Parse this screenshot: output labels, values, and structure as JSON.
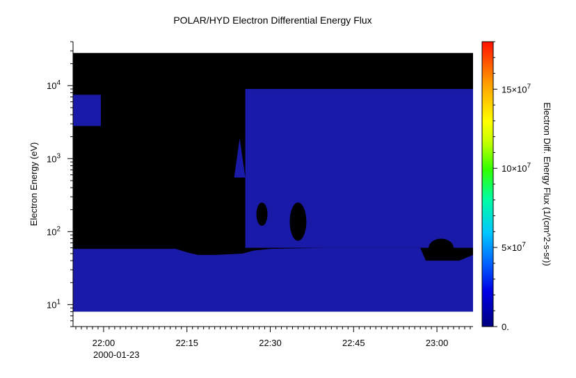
{
  "chart_data": {
    "type": "heatmap",
    "title": "POLAR/HYD  Electron Differential Energy Flux",
    "ylabel": "Electron Energy (eV)",
    "xlabel": "",
    "x_date_label": "2000-01-23",
    "x_ticks": [
      "22:00",
      "22:15",
      "22:30",
      "22:45",
      "23:00"
    ],
    "x_tick_minutes": [
      0,
      15,
      30,
      45,
      60
    ],
    "xlim_minutes": [
      -5.5,
      66.5
    ],
    "y_scale": "log",
    "ylim": [
      5,
      40000
    ],
    "y_ticks": [
      {
        "value": 10,
        "base": "10",
        "exp": "1"
      },
      {
        "value": 100,
        "base": "10",
        "exp": "2"
      },
      {
        "value": 1000,
        "base": "10",
        "exp": "3"
      },
      {
        "value": 10000,
        "base": "10",
        "exp": "4"
      }
    ],
    "data_energy_range_ev": [
      8,
      28000
    ],
    "colorbar": {
      "label": "Electron Diff. Energy Flux (1/(cm^2-s-sr))",
      "range": [
        0,
        180000000
      ],
      "ticks": [
        {
          "value": 0,
          "label": "0."
        },
        {
          "value": 50000000,
          "label": "5×10",
          "exp": "7"
        },
        {
          "value": 100000000,
          "label": "10×10",
          "exp": "7"
        },
        {
          "value": 150000000,
          "label": "15×10",
          "exp": "7"
        }
      ],
      "colormap": "rainbow (dark blue → red)"
    },
    "colors": {
      "no_flux": "#000000",
      "low_flux": "#1a1aa8",
      "fill_gap": "#ffffff"
    },
    "regions": [
      {
        "name": "low-energy electron band",
        "t_start": -5.5,
        "t_end": 66.5,
        "e_low": 8,
        "e_high_profile": [
          [
            -5.5,
            58
          ],
          [
            13,
            58
          ],
          [
            15,
            52
          ],
          [
            17,
            48
          ],
          [
            20,
            48
          ],
          [
            25,
            50
          ],
          [
            27,
            55
          ],
          [
            30,
            58
          ],
          [
            40,
            60
          ],
          [
            50,
            60
          ],
          [
            57,
            60
          ],
          [
            58,
            40
          ],
          [
            64,
            40
          ],
          [
            66.5,
            48
          ]
        ]
      },
      {
        "name": "high-energy burst",
        "t_start": -5.5,
        "t_end": -0.5,
        "e_low": 2800,
        "e_high": 7500
      },
      {
        "name": "narrow spike",
        "t_start": 23.5,
        "t_end": 25.5,
        "e_low": 550,
        "e_high": 1900
      },
      {
        "name": "main plasma sheet",
        "t_start": 25.5,
        "t_end": 66.5,
        "e_low": 60,
        "e_high": 9000
      }
    ]
  }
}
